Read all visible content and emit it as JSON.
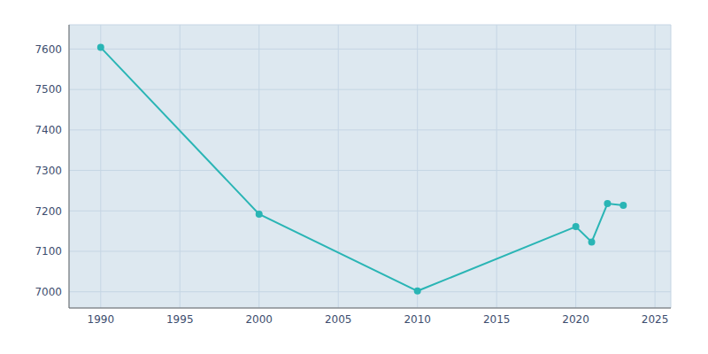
{
  "chart_data": {
    "type": "line",
    "x": [
      1990,
      2000,
      2010,
      2020,
      2021,
      2022,
      2023
    ],
    "values": [
      7604,
      7192,
      7002,
      7161,
      7123,
      7218,
      7214
    ],
    "color": "#2ab5b5",
    "marker": "circle",
    "xlim": [
      1988,
      2026
    ],
    "ylim": [
      6960,
      7660
    ],
    "xticks": [
      1990,
      1995,
      2000,
      2005,
      2010,
      2015,
      2020,
      2025
    ],
    "yticks": [
      7000,
      7100,
      7200,
      7300,
      7400,
      7500,
      7600
    ],
    "grid": true
  }
}
